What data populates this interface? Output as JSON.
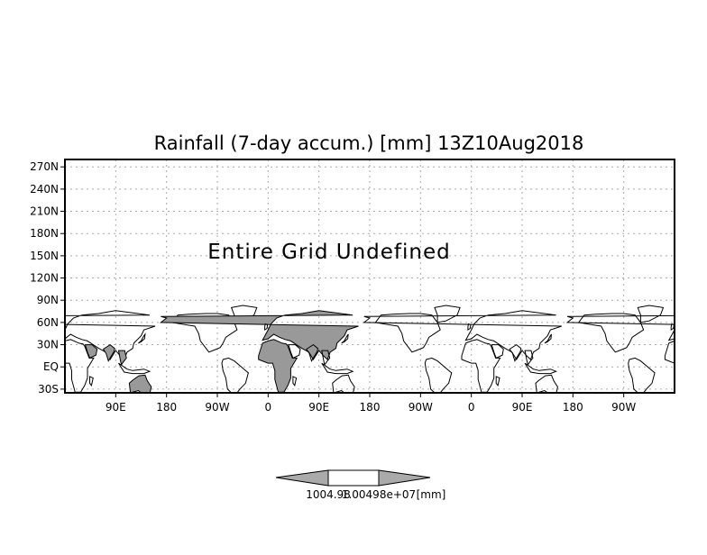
{
  "chart_data": {
    "type": "map",
    "title": "Rainfall (7-day accum.) [mm] 13Z10Aug2018",
    "annotation": "Entire Grid Undefined",
    "y_ticks": [
      "30S",
      "EQ",
      "30N",
      "60N",
      "90N",
      "120N",
      "150N",
      "180N",
      "210N",
      "240N",
      "270N"
    ],
    "y_values": [
      -30,
      0,
      30,
      60,
      90,
      120,
      150,
      180,
      210,
      240,
      270
    ],
    "ylim": [
      -35,
      280
    ],
    "x_ticks": [
      "90E",
      "180",
      "90W",
      "0",
      "90E",
      "180",
      "90W",
      "0",
      "90E",
      "180",
      "90W"
    ],
    "x_values": [
      90,
      180,
      270,
      360,
      450,
      540,
      630,
      720,
      810,
      900,
      990
    ],
    "xlim": [
      0,
      1080
    ],
    "grid": true,
    "colorbar": {
      "labels": [
        "1004.98",
        "1.00498e+07",
        "[mm]"
      ],
      "colors": [
        "#aaaaaa",
        "#ffffff",
        "#aaaaaa"
      ]
    },
    "land_color": "#999999"
  }
}
